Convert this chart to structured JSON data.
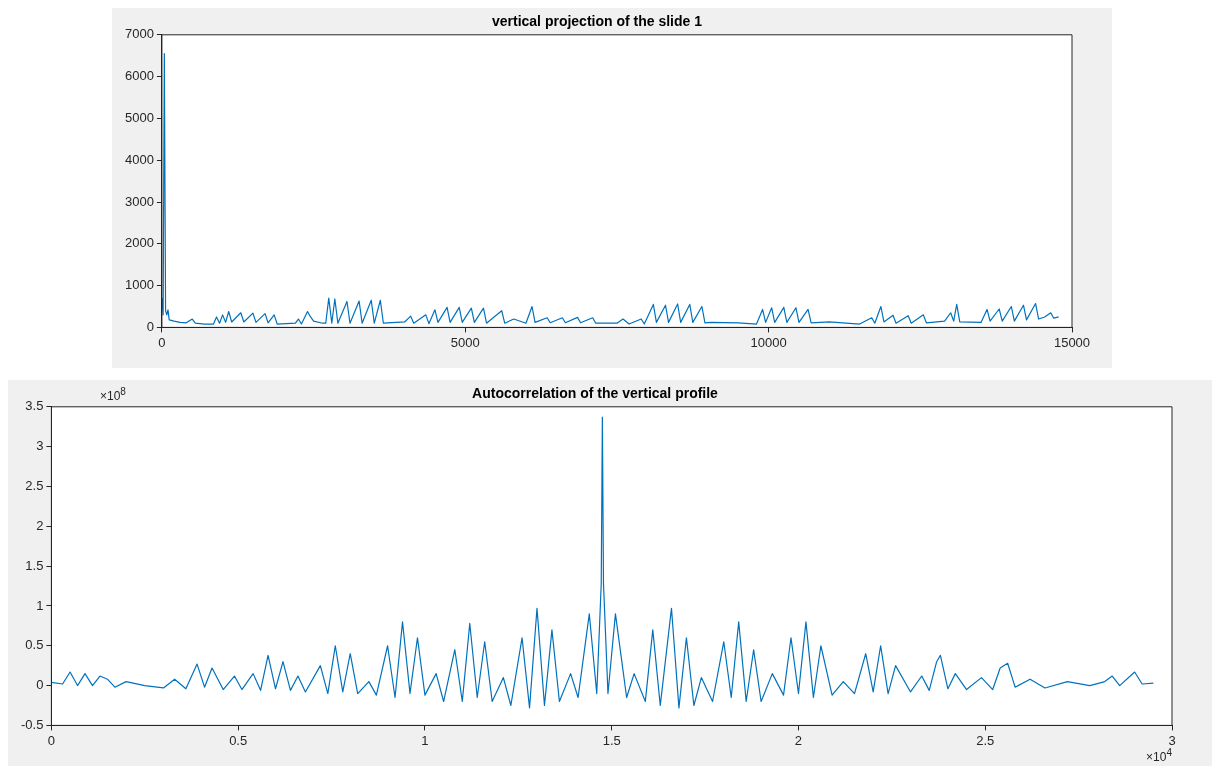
{
  "chart_data": [
    {
      "type": "line",
      "title": "vertical projection of the slide 1",
      "xlim": [
        0,
        15000
      ],
      "xticks": [
        0,
        5000,
        10000,
        15000
      ],
      "ylim": [
        0,
        7000
      ],
      "yticks": [
        0,
        1000,
        2000,
        3000,
        4000,
        5000,
        6000,
        7000
      ],
      "grid": false,
      "legend": false,
      "marker": "none",
      "line_style": "solid",
      "series": [
        {
          "color": "#0072bd",
          "x": [
            0,
            20,
            40,
            60,
            80,
            100,
            120,
            200,
            300,
            400,
            500,
            550,
            700,
            850,
            900,
            950,
            1000,
            1050,
            1100,
            1150,
            1300,
            1350,
            1500,
            1550,
            1700,
            1750,
            1850,
            1900,
            2200,
            2250,
            2300,
            2400,
            2450,
            2500,
            2650,
            2700,
            2750,
            2800,
            2850,
            2900,
            3050,
            3100,
            3250,
            3300,
            3450,
            3500,
            3600,
            3650,
            4000,
            4100,
            4150,
            4350,
            4400,
            4500,
            4550,
            4700,
            4750,
            4900,
            4950,
            5100,
            5150,
            5300,
            5350,
            5600,
            5650,
            5800,
            6000,
            6100,
            6150,
            6350,
            6400,
            6600,
            6650,
            6850,
            6900,
            7100,
            7150,
            7500,
            7600,
            7700,
            7900,
            7950,
            8100,
            8150,
            8300,
            8350,
            8500,
            8550,
            8700,
            8750,
            8900,
            8950,
            9050,
            9500,
            9800,
            9900,
            9950,
            10050,
            10100,
            10250,
            10300,
            10450,
            10500,
            10650,
            10700,
            11000,
            11500,
            11700,
            11750,
            11850,
            11900,
            12050,
            12100,
            12300,
            12350,
            12550,
            12600,
            12900,
            13000,
            13050,
            13100,
            13150,
            13500,
            13600,
            13650,
            13800,
            13850,
            14000,
            14050,
            14200,
            14250,
            14400,
            14450,
            14550,
            14650,
            14700,
            14780
          ],
          "values": [
            700,
            300,
            6550,
            400,
            300,
            420,
            180,
            150,
            120,
            110,
            200,
            100,
            80,
            80,
            250,
            100,
            300,
            120,
            380,
            130,
            350,
            130,
            340,
            120,
            330,
            110,
            300,
            80,
            100,
            200,
            80,
            380,
            250,
            150,
            100,
            100,
            700,
            100,
            680,
            100,
            620,
            100,
            630,
            100,
            650,
            100,
            650,
            100,
            130,
            270,
            100,
            300,
            90,
            420,
            120,
            480,
            120,
            480,
            120,
            460,
            120,
            460,
            100,
            400,
            100,
            200,
            100,
            500,
            120,
            230,
            110,
            230,
            110,
            240,
            110,
            230,
            100,
            100,
            200,
            80,
            200,
            80,
            550,
            120,
            530,
            120,
            560,
            120,
            550,
            120,
            500,
            110,
            120,
            110,
            80,
            430,
            120,
            470,
            120,
            480,
            120,
            470,
            120,
            430,
            110,
            130,
            80,
            230,
            100,
            500,
            130,
            290,
            100,
            280,
            100,
            300,
            110,
            150,
            350,
            150,
            550,
            130,
            120,
            430,
            150,
            440,
            150,
            500,
            150,
            530,
            180,
            570,
            200,
            250,
            350,
            220,
            250
          ]
        }
      ]
    },
    {
      "type": "line",
      "title": "Autocorrelation of the vertical profile",
      "xlim": [
        0,
        3
      ],
      "xticks": [
        0,
        0.5,
        1,
        1.5,
        2,
        2.5,
        3
      ],
      "ylim": [
        -0.5,
        3.5
      ],
      "yticks": [
        -0.5,
        0,
        0.5,
        1,
        1.5,
        2,
        2.5,
        3,
        3.5
      ],
      "grid": false,
      "legend": false,
      "marker": "none",
      "line_style": "solid",
      "annotations": [
        "×10$^{8}$",
        "×10$^{4}$"
      ],
      "series": [
        {
          "color": "#0072bd",
          "x": [
            0,
            0.03,
            0.05,
            0.07,
            0.09,
            0.11,
            0.13,
            0.15,
            0.17,
            0.2,
            0.25,
            0.3,
            0.33,
            0.36,
            0.39,
            0.41,
            0.43,
            0.46,
            0.49,
            0.51,
            0.54,
            0.56,
            0.58,
            0.6,
            0.62,
            0.64,
            0.66,
            0.68,
            0.72,
            0.74,
            0.76,
            0.78,
            0.8,
            0.82,
            0.85,
            0.87,
            0.9,
            0.92,
            0.94,
            0.96,
            0.98,
            1.0,
            1.03,
            1.05,
            1.08,
            1.1,
            1.12,
            1.14,
            1.16,
            1.18,
            1.21,
            1.23,
            1.26,
            1.28,
            1.3,
            1.32,
            1.34,
            1.36,
            1.39,
            1.41,
            1.44,
            1.46,
            1.472,
            1.475,
            1.478,
            1.49,
            1.51,
            1.54,
            1.56,
            1.59,
            1.61,
            1.63,
            1.66,
            1.68,
            1.7,
            1.72,
            1.74,
            1.77,
            1.8,
            1.82,
            1.84,
            1.86,
            1.88,
            1.9,
            1.93,
            1.96,
            1.98,
            2.0,
            2.02,
            2.04,
            2.06,
            2.09,
            2.12,
            2.15,
            2.18,
            2.2,
            2.22,
            2.24,
            2.26,
            2.3,
            2.33,
            2.35,
            2.37,
            2.38,
            2.4,
            2.42,
            2.45,
            2.49,
            2.52,
            2.54,
            2.56,
            2.58,
            2.62,
            2.66,
            2.72,
            2.78,
            2.82,
            2.84,
            2.86,
            2.9,
            2.92,
            2.95
          ],
          "values": [
            0.04,
            0.02,
            0.17,
            0.0,
            0.15,
            0.0,
            0.12,
            0.08,
            -0.02,
            0.05,
            0.0,
            -0.03,
            0.08,
            -0.04,
            0.27,
            -0.02,
            0.22,
            -0.05,
            0.12,
            -0.05,
            0.15,
            -0.06,
            0.38,
            -0.04,
            0.3,
            -0.06,
            0.12,
            -0.08,
            0.25,
            -0.1,
            0.5,
            -0.08,
            0.4,
            -0.1,
            0.05,
            -0.12,
            0.5,
            -0.15,
            0.8,
            -0.1,
            0.6,
            -0.12,
            0.15,
            -0.2,
            0.45,
            -0.2,
            0.78,
            -0.15,
            0.55,
            -0.2,
            0.1,
            -0.25,
            0.6,
            -0.28,
            0.97,
            -0.25,
            0.7,
            -0.2,
            0.15,
            -0.15,
            0.9,
            -0.1,
            1.28,
            3.37,
            1.28,
            -0.1,
            0.9,
            -0.15,
            0.15,
            -0.2,
            0.7,
            -0.25,
            0.97,
            -0.28,
            0.6,
            -0.25,
            0.1,
            -0.2,
            0.55,
            -0.15,
            0.8,
            -0.2,
            0.45,
            -0.2,
            0.15,
            -0.12,
            0.6,
            -0.1,
            0.8,
            -0.15,
            0.5,
            -0.12,
            0.05,
            -0.1,
            0.4,
            -0.08,
            0.5,
            -0.1,
            0.25,
            -0.08,
            0.12,
            -0.06,
            0.3,
            0.38,
            -0.04,
            0.15,
            -0.05,
            0.1,
            -0.05,
            0.22,
            0.28,
            -0.02,
            0.08,
            -0.03,
            0.05,
            0.0,
            0.05,
            0.12,
            0.0,
            0.17,
            0.02,
            0.03
          ]
        }
      ]
    }
  ]
}
